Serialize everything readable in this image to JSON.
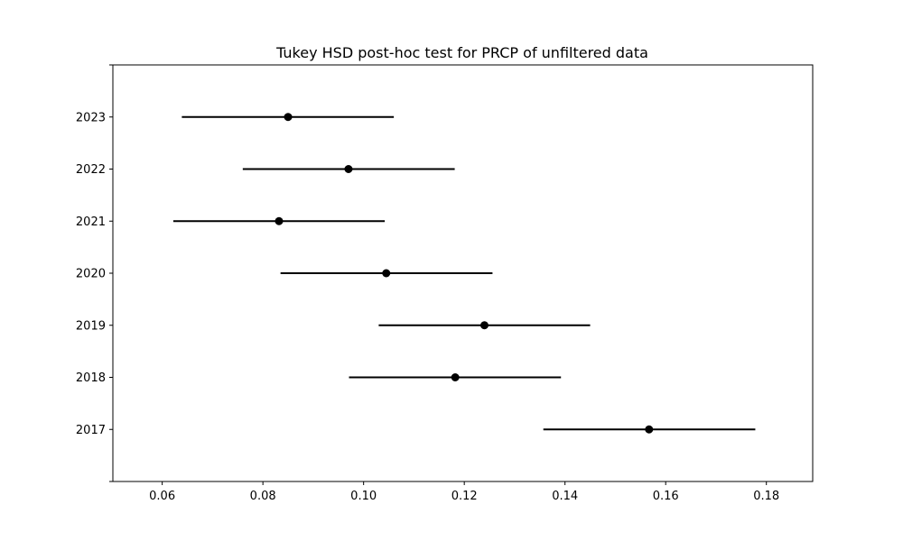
{
  "chart_data": {
    "type": "scatter",
    "title": "Tukey HSD post-hoc test for PRCP of unfiltered data",
    "xlabel": "",
    "ylabel": "",
    "xlim": [
      0.0502,
      0.1892
    ],
    "x_ticks": [
      "0.06",
      "0.08",
      "0.10",
      "0.12",
      "0.14",
      "0.16",
      "0.18"
    ],
    "x_tick_values": [
      0.06,
      0.08,
      0.1,
      0.12,
      0.14,
      0.16,
      0.18
    ],
    "categories": [
      "2017",
      "2018",
      "2019",
      "2020",
      "2021",
      "2022",
      "2023"
    ],
    "series": [
      {
        "means": [
          0.1567,
          0.1182,
          0.124,
          0.1045,
          0.0832,
          0.097,
          0.085
        ],
        "lower": [
          0.1357,
          0.0971,
          0.103,
          0.0835,
          0.0622,
          0.076,
          0.0639
        ],
        "upper": [
          0.1778,
          0.1392,
          0.145,
          0.1256,
          0.1042,
          0.1181,
          0.106
        ]
      }
    ],
    "grid": false,
    "colors": {
      "marker": "#000000",
      "line": "#000000"
    }
  }
}
